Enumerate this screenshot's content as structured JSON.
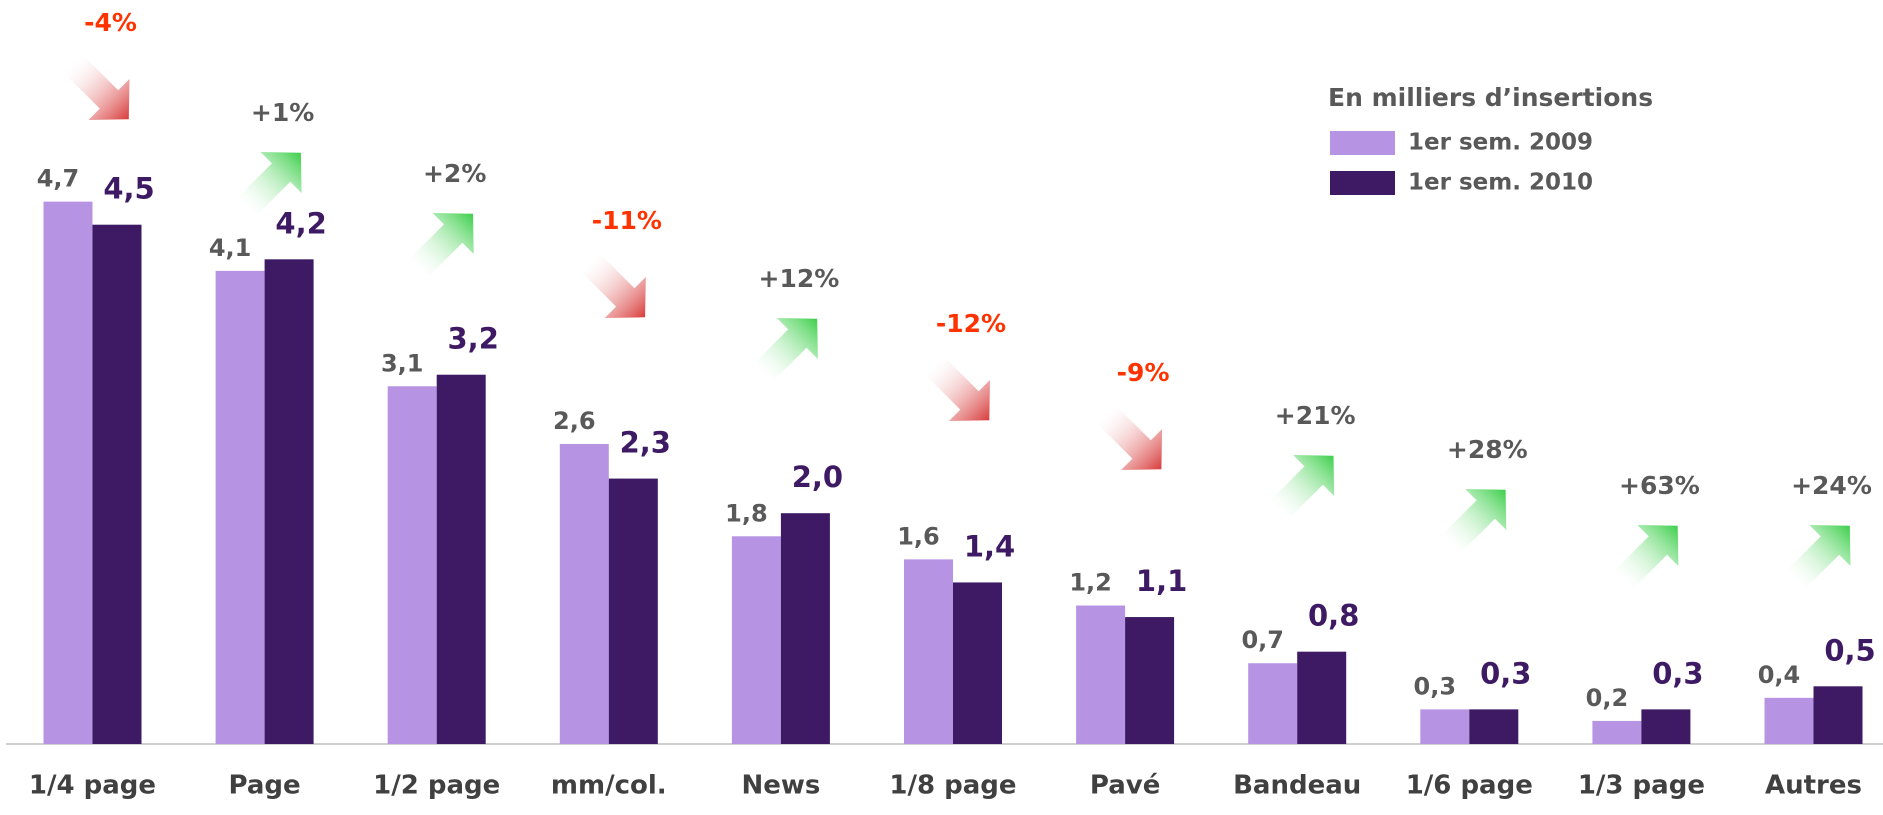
{
  "chart_data": {
    "type": "bar",
    "legend_title": "En milliers d’insertions",
    "categories": [
      "1/4 page",
      "Page",
      "1/2 page",
      "mm/col.",
      "News",
      "1/8 page",
      "Pavé",
      "Bandeau",
      "1/6 page",
      "1/3 page",
      "Autres"
    ],
    "series": [
      {
        "name": "1er sem. 2009",
        "color": "#b794e3",
        "values": [
          4.7,
          4.1,
          3.1,
          2.6,
          1.8,
          1.6,
          1.2,
          0.7,
          0.3,
          0.2,
          0.4
        ],
        "value_labels": [
          "4,7",
          "4,1",
          "3,1",
          "2,6",
          "1,8",
          "1,6",
          "1,2",
          "0,7",
          "0,3",
          "0,2",
          "0,4"
        ]
      },
      {
        "name": "1er sem. 2010",
        "color": "#3d1a63",
        "values": [
          4.5,
          4.2,
          3.2,
          2.3,
          2.0,
          1.4,
          1.1,
          0.8,
          0.3,
          0.3,
          0.5
        ],
        "value_labels": [
          "4,5",
          "4,2",
          "3,2",
          "2,3",
          "2,0",
          "1,4",
          "1,1",
          "0,8",
          "0,3",
          "0,3",
          "0,5"
        ]
      }
    ],
    "changes": [
      "-4%",
      "+1%",
      "+2%",
      "-11%",
      "+12%",
      "-12%",
      "-9%",
      "+21%",
      "+28%",
      "+63%",
      "+24%"
    ]
  }
}
